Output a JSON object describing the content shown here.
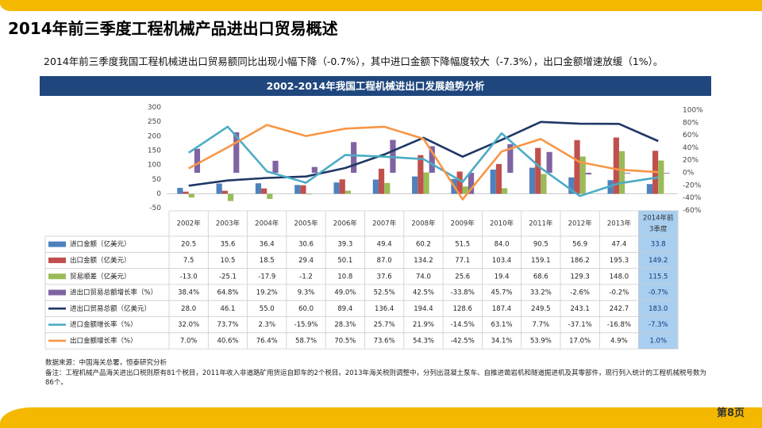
{
  "page": {
    "title": "2014年前三季度工程机械产品进出口贸易概述",
    "summary": "2014年前三季度我国工程机械进出口贸易额同比出现小幅下降（-0.7%），其中进口金额下降幅度较大（-7.3%），出口金额增速放缓（1%）。",
    "page_number": "第8页"
  },
  "notes": {
    "source": "数据来源：中国海关总署，恒泰研究分析",
    "remark": "备注：工程机械产品海关进出口税则原有81个税目，2011年收入非道路矿用货运自卸车的2个税目。2013年海关税则调整中，分列出混凝土泵车、自推进凿岩机和隧道掘进机及其零部件，现行列入统计的工程机械税号数为86个。"
  },
  "colors": {
    "header_bg": "#1f477e",
    "accent": "#f5b800",
    "import": "#4f81bd",
    "export": "#c0504d",
    "balance": "#9bbb59",
    "trade_growth": "#8064a2",
    "trade_total": "#1f3864",
    "import_growth": "#4bacc6",
    "export_growth": "#f79646",
    "highlight": "#9cc3e6"
  },
  "chart_data": {
    "type": "bar",
    "title": "2002-2014年我国工程机械进出口发展趋势分析",
    "categories": [
      "2002年",
      "2003年",
      "2004年",
      "2005年",
      "2006年",
      "2007年",
      "2008年",
      "2009年",
      "2010年",
      "2011年",
      "2012年",
      "2013年",
      "2014年前3季度"
    ],
    "y_left": {
      "ticks": [
        "300",
        "250",
        "200",
        "150",
        "100",
        "50",
        "0",
        "-50"
      ],
      "ylim": [
        -50,
        300
      ]
    },
    "y_right": {
      "ticks": [
        "100%",
        "80%",
        "60%",
        "40%",
        "20%",
        "0%",
        "-20%",
        "-40%",
        "-60%"
      ],
      "ylim": [
        -60,
        100
      ]
    },
    "series": [
      {
        "name": "进口金额（亿美元）",
        "kind": "bar",
        "axis": "left",
        "color": "#4f81bd",
        "values": [
          20.5,
          35.6,
          36.4,
          30.6,
          39.3,
          49.4,
          60.2,
          51.5,
          84.0,
          90.5,
          56.9,
          47.4,
          33.8
        ],
        "labels": [
          "20.5",
          "35.6",
          "36.4",
          "30.6",
          "39.3",
          "49.4",
          "60.2",
          "51.5",
          "84.0",
          "90.5",
          "56.9",
          "47.4",
          "33.8"
        ]
      },
      {
        "name": "出口金额（亿美元）",
        "kind": "bar",
        "axis": "left",
        "color": "#c0504d",
        "values": [
          7.5,
          10.5,
          18.5,
          29.4,
          50.1,
          87.0,
          134.2,
          77.1,
          103.4,
          159.1,
          186.2,
          195.3,
          149.2
        ],
        "labels": [
          "7.5",
          "10.5",
          "18.5",
          "29.4",
          "50.1",
          "87.0",
          "134.2",
          "77.1",
          "103.4",
          "159.1",
          "186.2",
          "195.3",
          "149.2"
        ]
      },
      {
        "name": "贸易顺差（亿美元）",
        "kind": "bar",
        "axis": "left",
        "color": "#9bbb59",
        "values": [
          -13.0,
          -25.1,
          -17.9,
          -1.2,
          10.8,
          37.6,
          74.0,
          25.6,
          19.4,
          68.6,
          129.3,
          148.0,
          115.5
        ],
        "labels": [
          "-13.0",
          "-25.1",
          "-17.9",
          "-1.2",
          "10.8",
          "37.6",
          "74.0",
          "25.6",
          "19.4",
          "68.6",
          "129.3",
          "148.0",
          "115.5"
        ]
      },
      {
        "name": "进出口贸易总额增长率（%）",
        "kind": "bar",
        "axis": "right",
        "color": "#8064a2",
        "values": [
          38.4,
          64.8,
          19.2,
          9.3,
          49.0,
          52.5,
          42.5,
          -33.8,
          45.7,
          33.2,
          -2.6,
          -0.2,
          -0.7
        ],
        "labels": [
          "38.4%",
          "64.8%",
          "19.2%",
          "9.3%",
          "49.0%",
          "52.5%",
          "42.5%",
          "-33.8%",
          "45.7%",
          "33.2%",
          "-2.6%",
          "-0.2%",
          "-0.7%"
        ]
      },
      {
        "name": "进出口贸易总额（亿美元）",
        "kind": "line",
        "axis": "left",
        "color": "#1f3864",
        "values": [
          28.0,
          46.1,
          55.0,
          60.0,
          89.4,
          136.4,
          194.4,
          128.6,
          187.4,
          249.5,
          243.1,
          242.7,
          183.0
        ],
        "labels": [
          "28.0",
          "46.1",
          "55.0",
          "60.0",
          "89.4",
          "136.4",
          "194.4",
          "128.6",
          "187.4",
          "249.5",
          "243.1",
          "242.7",
          "183.0"
        ]
      },
      {
        "name": "进口金额增长率（%）",
        "kind": "line",
        "axis": "right",
        "color": "#4bacc6",
        "values": [
          32.0,
          73.7,
          2.3,
          -15.9,
          28.3,
          25.7,
          21.9,
          -14.5,
          63.1,
          7.7,
          -37.1,
          -16.8,
          -7.3
        ],
        "labels": [
          "32.0%",
          "73.7%",
          "2.3%",
          "-15.9%",
          "28.3%",
          "25.7%",
          "21.9%",
          "-14.5%",
          "63.1%",
          "7.7%",
          "-37.1%",
          "-16.8%",
          "-7.3%"
        ]
      },
      {
        "name": "出口金额增长率（%）",
        "kind": "line",
        "axis": "right",
        "color": "#f79646",
        "values": [
          7.0,
          40.6,
          76.4,
          58.7,
          70.5,
          73.6,
          54.3,
          -42.5,
          34.1,
          53.9,
          17.0,
          4.9,
          1.0
        ],
        "labels": [
          "7.0%",
          "40.6%",
          "76.4%",
          "58.7%",
          "70.5%",
          "73.6%",
          "54.3%",
          "-42.5%",
          "34.1%",
          "53.9%",
          "17.0%",
          "4.9%",
          "1.0%"
        ]
      }
    ]
  }
}
